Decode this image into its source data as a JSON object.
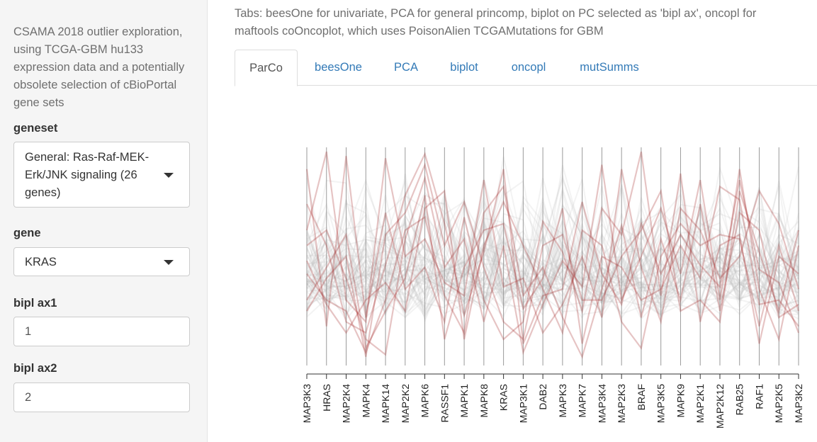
{
  "sidebar": {
    "intro": "CSAMA 2018 outlier exploration, using TCGA-GBM hu133 expression data and a potentially obsolete selection of cBioPortal gene sets",
    "geneset": {
      "label": "geneset",
      "value": "General: Ras-Raf-MEK-Erk/JNK signaling (26 genes)"
    },
    "gene": {
      "label": "gene",
      "value": "KRAS"
    },
    "bipl_ax1": {
      "label": "bipl ax1",
      "value": "1"
    },
    "bipl_ax2": {
      "label": "bipl ax2",
      "value": "2"
    }
  },
  "main": {
    "note": "Tabs: beesOne for univariate, PCA for general princomp, biplot on PC selected as 'bipl ax', oncopl for maftools coOncoplot, which uses PoisonAlien TCGAMutations for GBM",
    "tabs": [
      {
        "label": "ParCo",
        "active": true
      },
      {
        "label": "beesOne",
        "active": false
      },
      {
        "label": "PCA",
        "active": false
      },
      {
        "label": "biplot",
        "active": false
      },
      {
        "label": "oncopl",
        "active": false
      },
      {
        "label": "mutSumms",
        "active": false
      }
    ]
  },
  "colors": {
    "link": "#337ab7",
    "highlight": "#a52a2a",
    "background_lines": "#bdbdbd"
  },
  "chart_data": {
    "type": "parallel_coordinates",
    "axes": [
      "MAP3K3",
      "HRAS",
      "MAP2K4",
      "MAPK4",
      "MAPK14",
      "MAP2K2",
      "MAPK6",
      "RASSF1",
      "MAPK1",
      "MAPK8",
      "KRAS",
      "MAP3K1",
      "DAB2",
      "MAPK3",
      "MAPK7",
      "MAP3K4",
      "MAP2K3",
      "BRAF",
      "MAP3K5",
      "MAPK9",
      "MAP2K1",
      "MAP2K12",
      "RAB25",
      "RAF1",
      "MAP2K5",
      "MAP3K2"
    ],
    "series": [
      {
        "name": "",
        "values": [
          0.74,
          0.55,
          0.2,
          0.15,
          0.46,
          0.78,
          0.97,
          0.65,
          0.23,
          0.52,
          0.9,
          0.1,
          0.32,
          0.35,
          0.75,
          0.42,
          0.28,
          0.65,
          0.42,
          0.6,
          0.46,
          0.36,
          0.85,
          0.44,
          0.38,
          0.15
        ]
      },
      {
        "name": "",
        "values": [
          0.42,
          0.3,
          0.25,
          0.06,
          0.3,
          0.62,
          0.68,
          0.32,
          0.15,
          0.7,
          0.82,
          0.32,
          0.45,
          0.22,
          0.04,
          0.35,
          0.64,
          0.22,
          0.58,
          0.3,
          0.74,
          0.25,
          0.7,
          0.62,
          0.22,
          0.28
        ]
      },
      {
        "name": "",
        "values": [
          0.9,
          0.18,
          0.96,
          0.22,
          0.7,
          0.35,
          0.45,
          0.2,
          0.68,
          0.3,
          0.12,
          0.2,
          0.66,
          0.52,
          0.25,
          0.72,
          0.6,
          0.98,
          0.32,
          0.88,
          0.2,
          0.55,
          0.6,
          0.1,
          0.5,
          0.42
        ]
      },
      {
        "name": "",
        "values": [
          0.55,
          0.62,
          0.4,
          0.12,
          0.05,
          0.58,
          0.86,
          0.45,
          0.58,
          0.2,
          0.55,
          0.06,
          0.28,
          0.48,
          0.36,
          0.92,
          0.3,
          0.5,
          0.72,
          0.42,
          0.85,
          0.3,
          0.9,
          0.35,
          0.12,
          0.55
        ]
      },
      {
        "name": "",
        "values": [
          0.3,
          0.45,
          0.6,
          0.08,
          0.25,
          0.4,
          0.78,
          0.12,
          0.45,
          0.62,
          0.65,
          0.26,
          0.4,
          0.72,
          0.1,
          0.5,
          0.45,
          0.3,
          0.35,
          0.55,
          0.4,
          0.82,
          0.76,
          0.28,
          0.3,
          0.18
        ]
      },
      {
        "name": "",
        "values": [
          0.62,
          0.98,
          0.3,
          0.2,
          0.95,
          0.5,
          0.58,
          0.38,
          0.32,
          0.85,
          0.36,
          0.4,
          0.15,
          0.28,
          0.5,
          0.22,
          0.9,
          0.45,
          0.2,
          0.72,
          0.62,
          0.4,
          0.5,
          0.8,
          0.65,
          0.35
        ]
      },
      {
        "name": "",
        "values": [
          0.25,
          0.4,
          0.5,
          0.04,
          0.6,
          0.7,
          0.92,
          0.55,
          0.75,
          0.45,
          0.2,
          0.12,
          0.55,
          0.6,
          0.3,
          0.3,
          0.5,
          0.62,
          0.8,
          0.25,
          0.3,
          0.2,
          0.8,
          0.52,
          0.25,
          0.62
        ]
      },
      {
        "name": "",
        "values": [
          0.48,
          0.28,
          0.15,
          0.3,
          0.38,
          0.25,
          0.72,
          0.8,
          0.12,
          0.55,
          0.75,
          0.55,
          0.35,
          0.15,
          0.62,
          0.55,
          0.2,
          0.08,
          0.5,
          0.65,
          0.55,
          0.6,
          0.58,
          0.18,
          0.55,
          0.25
        ]
      }
    ],
    "y_scale": "normalized, no y tick labels",
    "legend": "none",
    "grid": false
  }
}
